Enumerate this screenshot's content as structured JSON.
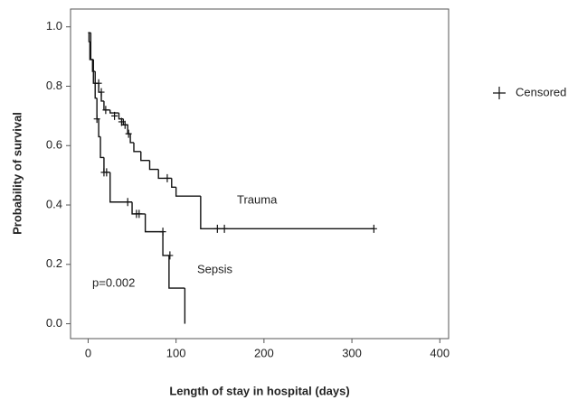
{
  "chart_data": {
    "type": "step",
    "xlabel": "Length of stay in hospital (days)",
    "ylabel": "Probability of survival",
    "xlim": [
      -20,
      410
    ],
    "ylim": [
      -0.05,
      1.06
    ],
    "xticks": [
      0,
      100,
      200,
      300,
      400
    ],
    "yticks": [
      {
        "value": 0,
        "label": "0.0"
      },
      0.2,
      0.4,
      0.6,
      0.8,
      {
        "value": 1,
        "label": "1.0"
      }
    ],
    "color": "#111111",
    "legend": "right",
    "censored_label": "Censored",
    "annotation": "p=0.002",
    "series": [
      {
        "name": "Trauma",
        "x": [
          0,
          1,
          2,
          5,
          8,
          12,
          15,
          18,
          25,
          35,
          40,
          45,
          48,
          52,
          60,
          70,
          80,
          95,
          100,
          128,
          325
        ],
        "values": [
          0.98,
          0.95,
          0.89,
          0.85,
          0.81,
          0.78,
          0.75,
          0.72,
          0.71,
          0.69,
          0.67,
          0.64,
          0.61,
          0.58,
          0.55,
          0.52,
          0.49,
          0.46,
          0.43,
          0.32,
          0.32
        ],
        "censored_x": [
          12,
          15,
          20,
          30,
          38,
          42,
          46,
          90,
          147,
          155,
          325
        ],
        "censored_y": [
          0.81,
          0.78,
          0.72,
          0.7,
          0.68,
          0.67,
          0.64,
          0.49,
          0.32,
          0.32,
          0.32
        ]
      },
      {
        "name": "Sepsis",
        "x": [
          0,
          3,
          6,
          8,
          10,
          12,
          14,
          18,
          25,
          50,
          65,
          85,
          92,
          110
        ],
        "values": [
          0.98,
          0.89,
          0.81,
          0.76,
          0.69,
          0.63,
          0.56,
          0.51,
          0.41,
          0.37,
          0.31,
          0.23,
          0.12,
          0.0
        ],
        "censored_x": [
          10,
          18,
          21,
          45,
          55,
          58,
          85,
          93
        ],
        "censored_y": [
          0.69,
          0.51,
          0.51,
          0.41,
          0.37,
          0.37,
          0.31,
          0.23
        ]
      }
    ]
  }
}
